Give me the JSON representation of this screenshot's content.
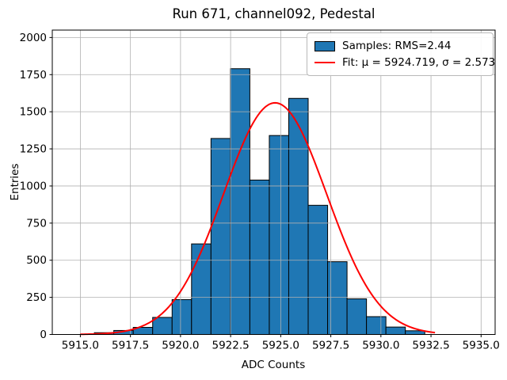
{
  "chart_data": {
    "type": "bar",
    "subtype": "histogram",
    "title": "Run 671, channel092, Pedestal",
    "xlabel": "ADC Counts",
    "ylabel": "Entries",
    "xlim": [
      5913.6,
      5935.7
    ],
    "ylim": [
      0,
      2050
    ],
    "xtick_values": [
      5915.0,
      5917.5,
      5920.0,
      5922.5,
      5925.0,
      5927.5,
      5930.0,
      5932.5,
      5935.0
    ],
    "xtick_labels": [
      "5915.0",
      "5917.5",
      "5920.0",
      "5922.5",
      "5925.0",
      "5927.5",
      "5930.0",
      "5932.5",
      "5935.0"
    ],
    "ytick_values": [
      0,
      250,
      500,
      750,
      1000,
      1250,
      1500,
      1750,
      2000
    ],
    "ytick_labels": [
      "0",
      "250",
      "500",
      "750",
      "1000",
      "1250",
      "1500",
      "1750",
      "2000"
    ],
    "grid": true,
    "grid_color": "#b0b0b0",
    "background_color": "#ffffff",
    "series": [
      {
        "name": "Samples: RMS=2.44",
        "kind": "histogram",
        "rms": 2.44,
        "bin_start": 5915.7,
        "bin_width": 0.97,
        "counts": [
          12,
          27,
          48,
          115,
          235,
          610,
          1320,
          1790,
          1040,
          1340,
          1590,
          870,
          490,
          240,
          120,
          50,
          25
        ],
        "fill_color": "#1f77b4",
        "edge_color": "#000000"
      },
      {
        "name": "Fit: μ = 5924.719, σ = 2.573",
        "kind": "gaussian-fit",
        "mu": 5924.719,
        "sigma": 2.573,
        "amplitude": 1560,
        "x_range": [
          5915.0,
          5932.7
        ],
        "color": "#ff0000"
      }
    ],
    "legend": {
      "position": "upper right",
      "entries": [
        "Samples: RMS=2.44",
        "Fit: μ = 5924.719, σ = 2.573"
      ]
    }
  }
}
